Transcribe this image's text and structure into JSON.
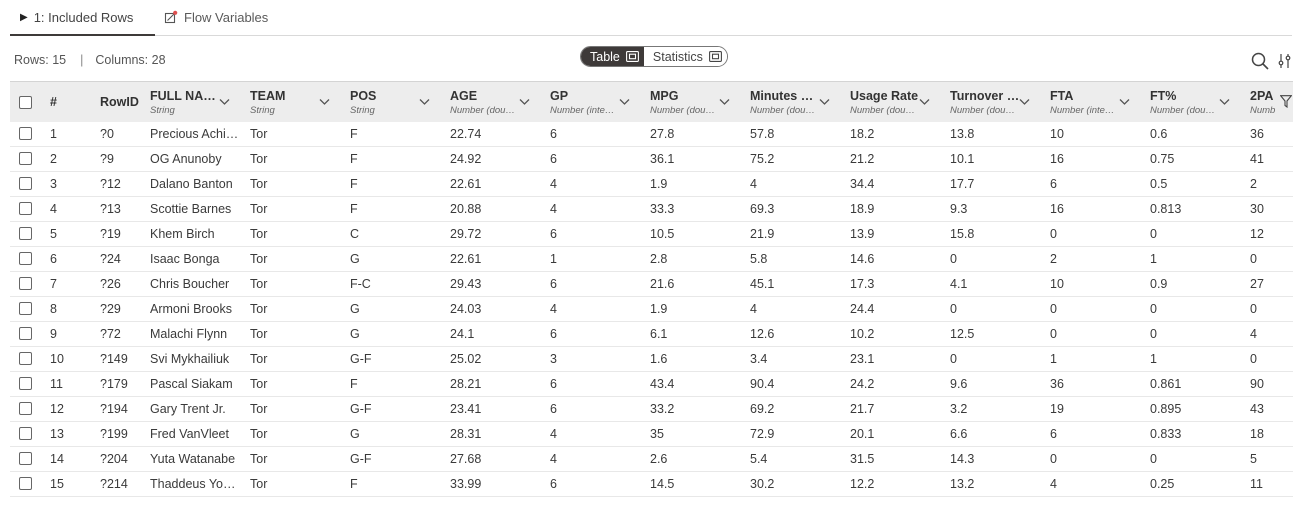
{
  "tabs": {
    "included_rows": "1: Included Rows",
    "flow_variables": "Flow Variables"
  },
  "info": {
    "rows": "Rows: 15",
    "separator": "|",
    "columns": "Columns: 28"
  },
  "view_toggle": {
    "table": "Table",
    "statistics": "Statistics",
    "selected": "Table"
  },
  "toolbar": {
    "search_icon": "search-icon",
    "settings_icon": "column-settings-icon"
  },
  "columns": [
    {
      "name": "#",
      "type": ""
    },
    {
      "name": "RowID",
      "type": ""
    },
    {
      "name": "FULL NA…",
      "type": "String"
    },
    {
      "name": "TEAM",
      "type": "String"
    },
    {
      "name": "POS",
      "type": "String"
    },
    {
      "name": "AGE",
      "type": "Number (dou…"
    },
    {
      "name": "GP",
      "type": "Number (inte…"
    },
    {
      "name": "MPG",
      "type": "Number (dou…"
    },
    {
      "name": "Minutes …",
      "type": "Number (dou…"
    },
    {
      "name": "Usage Rate",
      "type": "Number (dou…"
    },
    {
      "name": "Turnover …",
      "type": "Number (dou…"
    },
    {
      "name": "FTA",
      "type": "Number (inte…"
    },
    {
      "name": "FT%",
      "type": "Number (dou…"
    },
    {
      "name": "2PA",
      "type": "Numb"
    }
  ],
  "rows": [
    [
      "1",
      "?0",
      "Precious Achi…",
      "Tor",
      "F",
      "22.74",
      "6",
      "27.8",
      "57.8",
      "18.2",
      "13.8",
      "10",
      "0.6",
      "36"
    ],
    [
      "2",
      "?9",
      "OG Anunoby",
      "Tor",
      "F",
      "24.92",
      "6",
      "36.1",
      "75.2",
      "21.2",
      "10.1",
      "16",
      "0.75",
      "41"
    ],
    [
      "3",
      "?12",
      "Dalano Banton",
      "Tor",
      "F",
      "22.61",
      "4",
      "1.9",
      "4",
      "34.4",
      "17.7",
      "6",
      "0.5",
      "2"
    ],
    [
      "4",
      "?13",
      "Scottie Barnes",
      "Tor",
      "F",
      "20.88",
      "4",
      "33.3",
      "69.3",
      "18.9",
      "9.3",
      "16",
      "0.813",
      "30"
    ],
    [
      "5",
      "?19",
      "Khem Birch",
      "Tor",
      "C",
      "29.72",
      "6",
      "10.5",
      "21.9",
      "13.9",
      "15.8",
      "0",
      "0",
      "12"
    ],
    [
      "6",
      "?24",
      "Isaac Bonga",
      "Tor",
      "G",
      "22.61",
      "1",
      "2.8",
      "5.8",
      "14.6",
      "0",
      "2",
      "1",
      "0"
    ],
    [
      "7",
      "?26",
      "Chris Boucher",
      "Tor",
      "F-C",
      "29.43",
      "6",
      "21.6",
      "45.1",
      "17.3",
      "4.1",
      "10",
      "0.9",
      "27"
    ],
    [
      "8",
      "?29",
      "Armoni Brooks",
      "Tor",
      "G",
      "24.03",
      "4",
      "1.9",
      "4",
      "24.4",
      "0",
      "0",
      "0",
      "0"
    ],
    [
      "9",
      "?72",
      "Malachi Flynn",
      "Tor",
      "G",
      "24.1",
      "6",
      "6.1",
      "12.6",
      "10.2",
      "12.5",
      "0",
      "0",
      "4"
    ],
    [
      "10",
      "?149",
      "Svi Mykhailiuk",
      "Tor",
      "G-F",
      "25.02",
      "3",
      "1.6",
      "3.4",
      "23.1",
      "0",
      "1",
      "1",
      "0"
    ],
    [
      "11",
      "?179",
      "Pascal Siakam",
      "Tor",
      "F",
      "28.21",
      "6",
      "43.4",
      "90.4",
      "24.2",
      "9.6",
      "36",
      "0.861",
      "90"
    ],
    [
      "12",
      "?194",
      "Gary Trent Jr.",
      "Tor",
      "G-F",
      "23.41",
      "6",
      "33.2",
      "69.2",
      "21.7",
      "3.2",
      "19",
      "0.895",
      "43"
    ],
    [
      "13",
      "?199",
      "Fred VanVleet",
      "Tor",
      "G",
      "28.31",
      "4",
      "35",
      "72.9",
      "20.1",
      "6.6",
      "6",
      "0.833",
      "18"
    ],
    [
      "14",
      "?204",
      "Yuta Watanabe",
      "Tor",
      "G-F",
      "27.68",
      "4",
      "2.6",
      "5.4",
      "31.5",
      "14.3",
      "0",
      "0",
      "5"
    ],
    [
      "15",
      "?214",
      "Thaddeus Yo…",
      "Tor",
      "F",
      "33.99",
      "6",
      "14.5",
      "30.2",
      "12.2",
      "13.2",
      "4",
      "0.25",
      "11"
    ]
  ]
}
